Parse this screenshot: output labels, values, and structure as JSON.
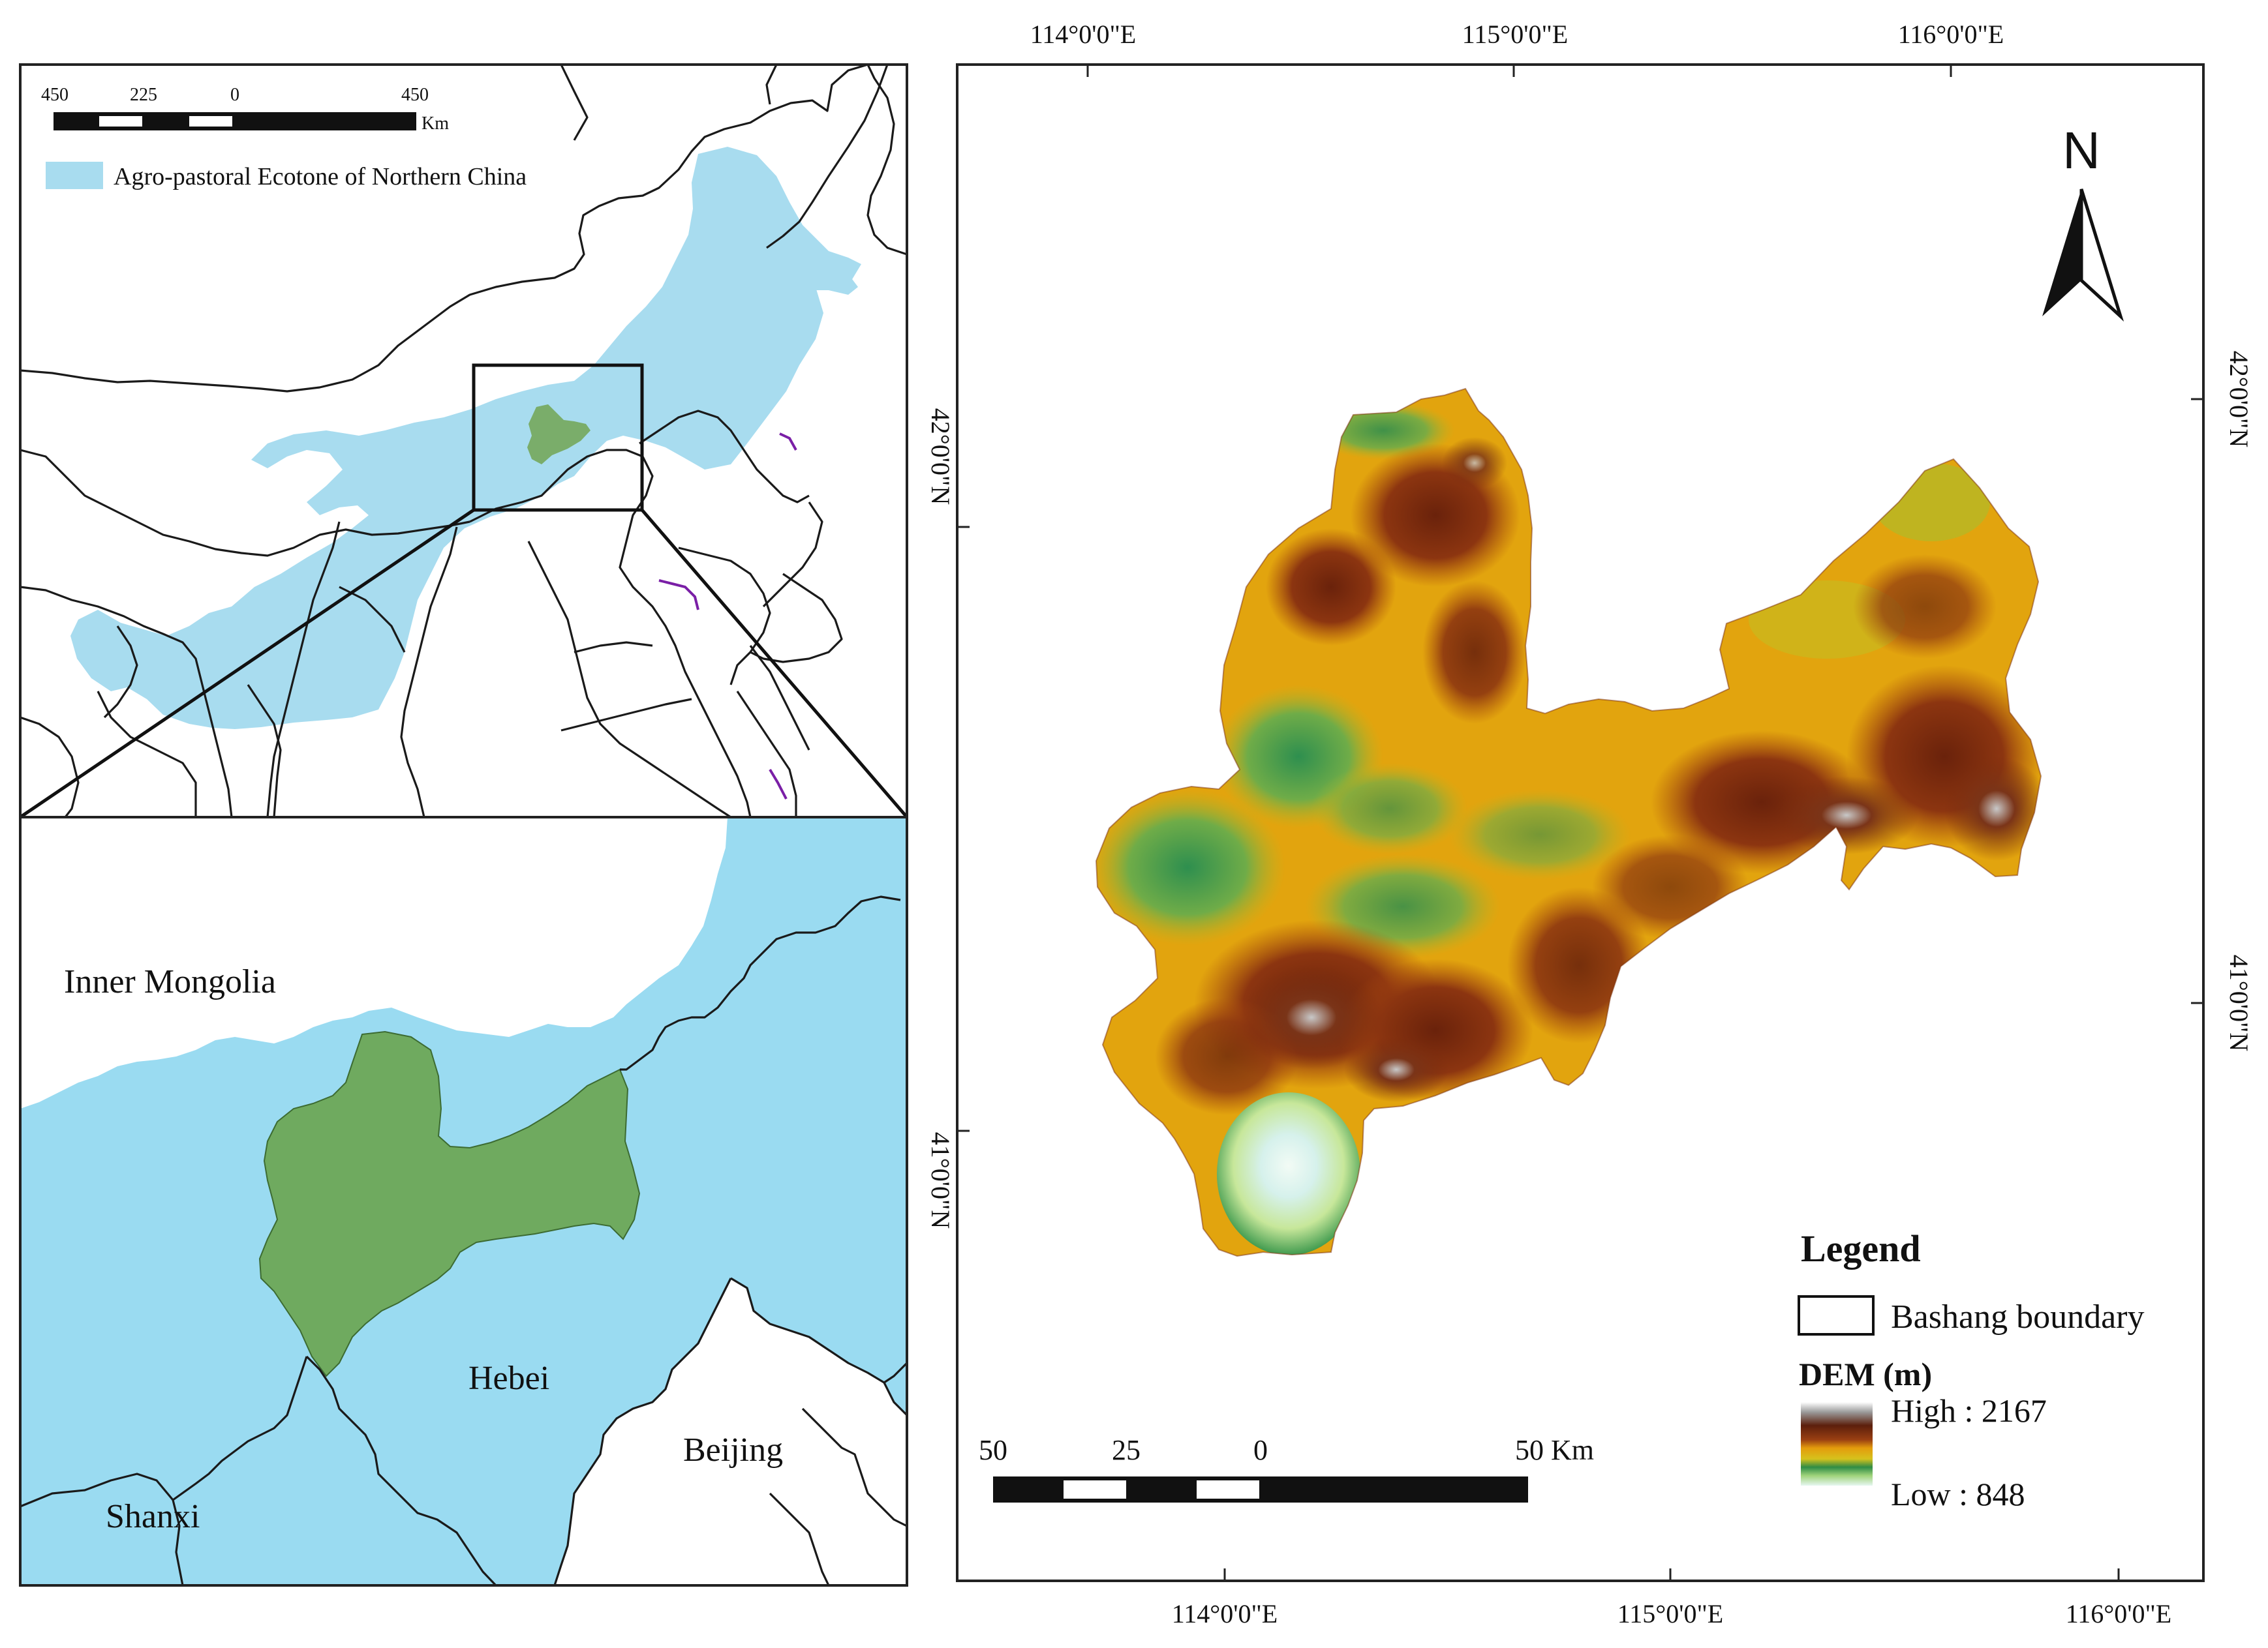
{
  "overview_map": {
    "scale_bar": {
      "labels": [
        "450",
        "225",
        "0",
        "450"
      ],
      "unit": "Km"
    },
    "legend": {
      "label": "Agro-pastoral Ecotone of Northern China",
      "color": "#a8dcef"
    },
    "study_area_color": "#7aad6a"
  },
  "detail_map": {
    "labels": {
      "inner_mongolia": "Inner Mongolia",
      "hebei": "Hebei",
      "shanxi": "Shanxi",
      "beijing": "Beijing"
    },
    "latitude_label": "41°0'0\"N",
    "colors": {
      "ecotone": "#9adbf1",
      "study_area": "#6faa5f"
    }
  },
  "left_lat_label": "42°0'0\"N",
  "dem_map": {
    "top_longitude_labels": [
      "114°0'0\"E",
      "115°0'0\"E",
      "116°0'0\"E"
    ],
    "bottom_longitude_labels": [
      "114°0'0\"E",
      "115°0'0\"E",
      "116°0'0\"E"
    ],
    "right_latitude_labels": [
      "42°0'0\"N",
      "41°0'0\"N"
    ],
    "north_arrow": "N",
    "scale_bar": {
      "labels": [
        "50",
        "25",
        "0",
        "50 Km"
      ]
    },
    "legend": {
      "title": "Legend",
      "boundary_label": "Bashang boundary",
      "dem_title": "DEM (m)",
      "high_label": "High : 2167",
      "low_label": "Low : 848",
      "high_value": 2167,
      "low_value": 848
    },
    "dem_colors": [
      "#ffffff",
      "#8a8a8a",
      "#5a1e0c",
      "#7f2f10",
      "#c25a15",
      "#e2a00a",
      "#d8b21a",
      "#a8b83a",
      "#3f9a4e",
      "#2f8a45",
      "#d7e9a0",
      "#dff5f0"
    ]
  }
}
